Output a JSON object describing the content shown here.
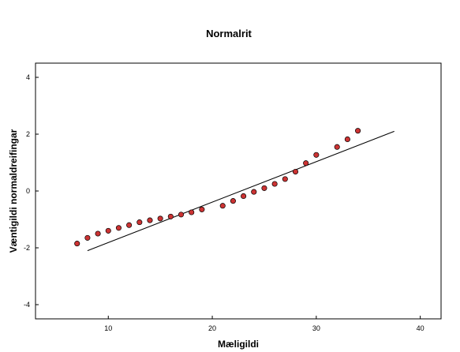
{
  "chart_data": {
    "type": "scatter",
    "title": "Normalrit",
    "xlabel": "Mæligildi",
    "ylabel": "Væntigildi normaldreifingar",
    "xlim": [
      3,
      42
    ],
    "ylim": [
      -4.5,
      4.5
    ],
    "xticks": [
      10,
      20,
      30,
      40
    ],
    "yticks": [
      -4,
      -2,
      0,
      2,
      4
    ],
    "grid": false,
    "points": [
      {
        "x": 7,
        "y": -1.85
      },
      {
        "x": 8,
        "y": -1.65
      },
      {
        "x": 9,
        "y": -1.5
      },
      {
        "x": 10,
        "y": -1.4
      },
      {
        "x": 11,
        "y": -1.3
      },
      {
        "x": 12,
        "y": -1.2
      },
      {
        "x": 13,
        "y": -1.1
      },
      {
        "x": 14,
        "y": -1.03
      },
      {
        "x": 15,
        "y": -0.97
      },
      {
        "x": 16,
        "y": -0.9
      },
      {
        "x": 17,
        "y": -0.83
      },
      {
        "x": 18,
        "y": -0.75
      },
      {
        "x": 19,
        "y": -0.65
      },
      {
        "x": 21,
        "y": -0.52
      },
      {
        "x": 22,
        "y": -0.35
      },
      {
        "x": 23,
        "y": -0.18
      },
      {
        "x": 24,
        "y": -0.03
      },
      {
        "x": 25,
        "y": 0.1
      },
      {
        "x": 26,
        "y": 0.25
      },
      {
        "x": 27,
        "y": 0.42
      },
      {
        "x": 28,
        "y": 0.68
      },
      {
        "x": 29,
        "y": 0.98
      },
      {
        "x": 30,
        "y": 1.27
      },
      {
        "x": 32,
        "y": 1.55
      },
      {
        "x": 33,
        "y": 1.82
      },
      {
        "x": 34,
        "y": 2.12
      }
    ],
    "reference_line": {
      "x": [
        8,
        37.5
      ],
      "y": [
        -2.1,
        2.1
      ]
    },
    "marker_color": "#cc3333",
    "marker_edge_color": "#000000",
    "line_color": "#000000"
  }
}
